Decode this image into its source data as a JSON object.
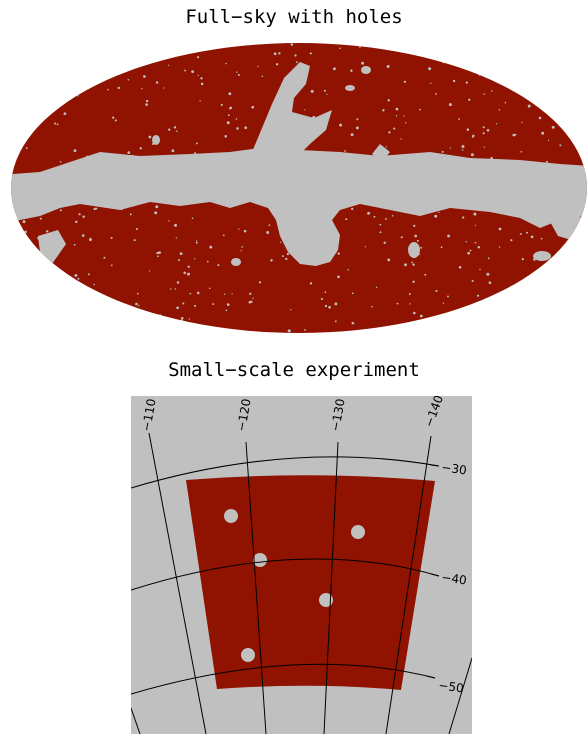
{
  "panels": {
    "fullsky": {
      "title": "Full−sky with holes"
    },
    "small": {
      "title": "Small−scale experiment",
      "meridian_labels": [
        "−110",
        "−120",
        "−130",
        "−140"
      ],
      "parallel_labels": [
        "−30",
        "−40",
        "−50"
      ]
    }
  },
  "colors": {
    "mask": "#8f1300",
    "holes": "#c0c0c0",
    "background": "#ffffff",
    "grid": "#000000"
  }
}
